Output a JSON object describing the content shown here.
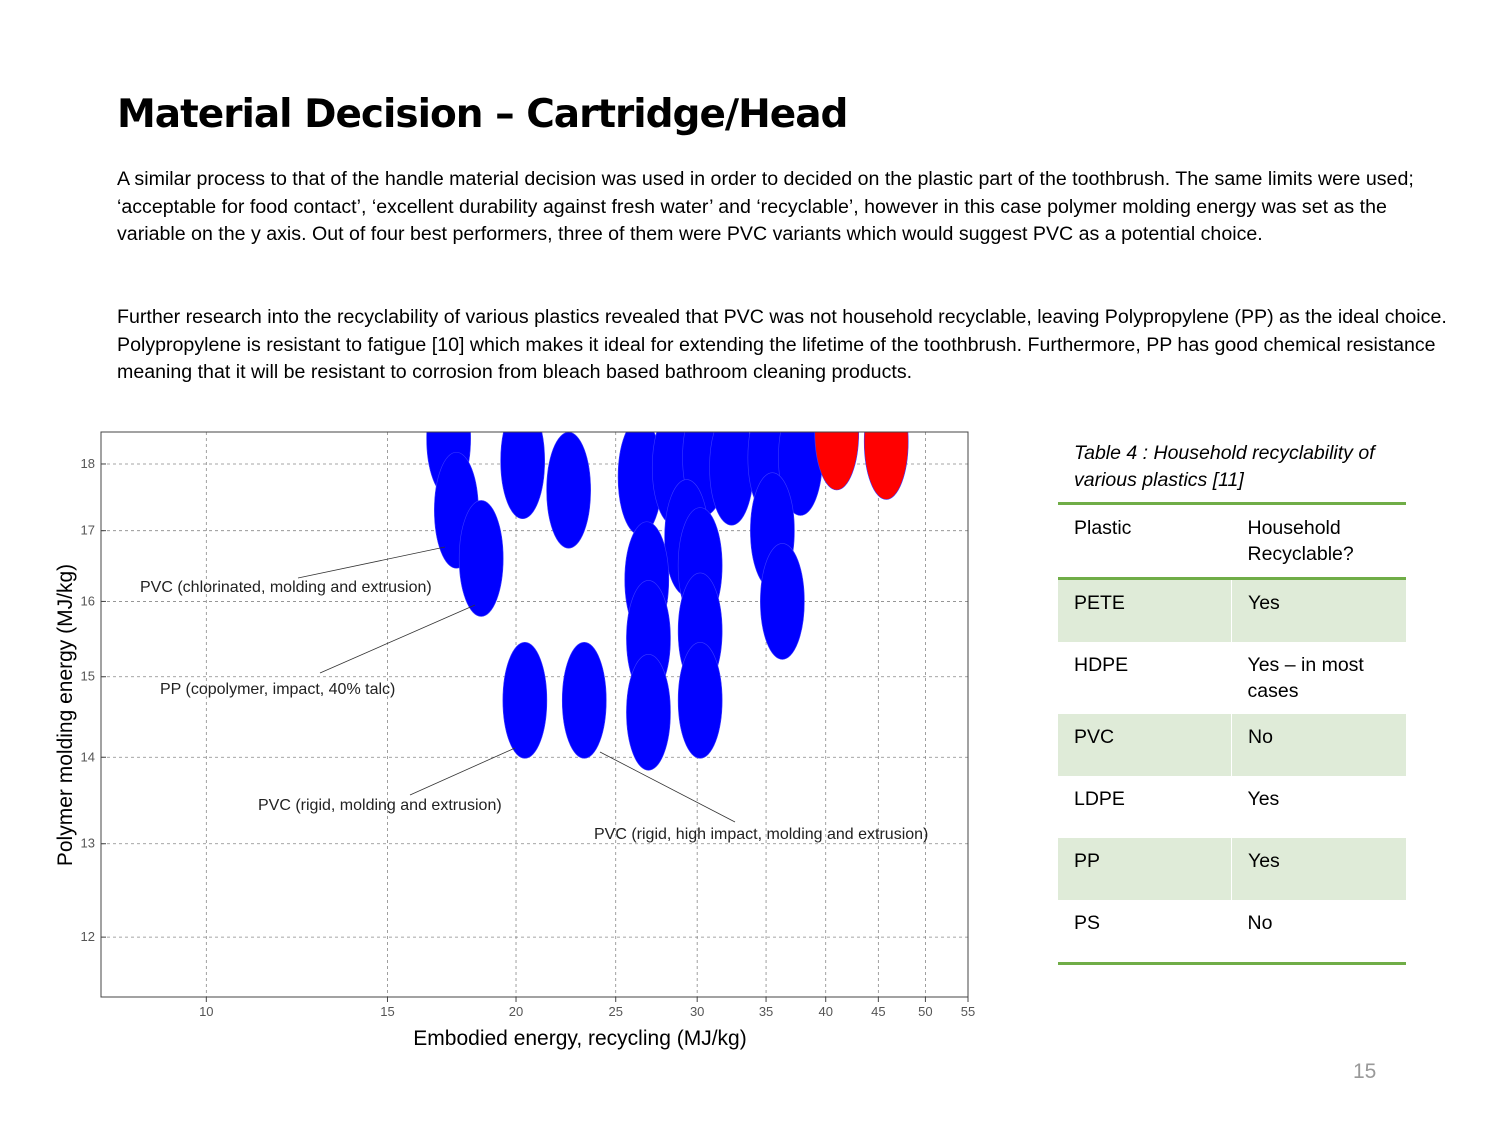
{
  "header": {
    "title": "Material Decision – Cartridge/Head"
  },
  "paragraphs": [
    "A similar process to that of the handle material decision was used in order to decided on the plastic part of the toothbrush. The same limits were used; ‘acceptable for food contact’, ‘excellent durability against fresh water’ and ‘recyclable’, however in this case polymer molding energy was set as the variable on the y axis. Out of four best performers, three of them were PVC variants which would suggest PVC as a potential choice.",
    "Further research into the recyclability of various plastics revealed that PVC was not household recyclable, leaving Polypropylene (PP) as the ideal choice. Polypropylene is resistant to fatigue [10] which makes it ideal for extending the lifetime of the toothbrush. Furthermore, PP has good chemical resistance meaning that it will be resistant to corrosion from bleach based bathroom cleaning products."
  ],
  "chart_data": {
    "type": "scatter",
    "x_label": "Embodied energy, recycling (MJ/kg)",
    "y_label": "Polymer molding energy (MJ/kg)",
    "xscale": "log",
    "yscale": "log",
    "grid": true,
    "xlim": [
      7.9,
      55
    ],
    "ylim": [
      11.4,
      18.5
    ],
    "xticks": [
      10,
      15,
      20,
      25,
      30,
      35,
      40,
      45,
      50,
      55
    ],
    "yticks": [
      12,
      13,
      14,
      15,
      16,
      17,
      18
    ],
    "series": [
      {
        "color": "#0000ff",
        "x": [
          17.2,
          17.5,
          18.5,
          20.3,
          22.5,
          26.4,
          28.5,
          30.5,
          32.4,
          35.3,
          37.8,
          29.3,
          35.5,
          26.8,
          30.2,
          36.3,
          26.9,
          30.2,
          20.4,
          23.3,
          26.9,
          30.2
        ],
        "values": [
          18.4,
          17.3,
          16.6,
          18.05,
          17.6,
          17.8,
          17.95,
          18.1,
          17.95,
          18.1,
          18.1,
          16.9,
          17.0,
          16.3,
          16.5,
          16.0,
          15.5,
          15.6,
          14.7,
          14.7,
          14.55,
          14.7
        ]
      },
      {
        "color": "#ff0000",
        "x": [
          41,
          45.8
        ],
        "values": [
          18.5,
          18.35
        ]
      }
    ],
    "annotations": [
      "PVC (chlorinated, molding and extrusion)",
      "PP (copolymer, impact, 40% talc)",
      "PVC (rigid, molding and extrusion)",
      "PVC (rigid, high impact, molding and extrusion)"
    ]
  },
  "table": {
    "caption": "Table 4 : Household recyclability of various plastics [11]",
    "header": [
      "Plastic",
      "Household Recyclable?"
    ],
    "rows": [
      [
        "PETE",
        "Yes"
      ],
      [
        "HDPE",
        "Yes – in most cases"
      ],
      [
        "PVC",
        "No"
      ],
      [
        "LDPE",
        "Yes"
      ],
      [
        "PP",
        "Yes"
      ],
      [
        "PS",
        "No"
      ]
    ]
  },
  "page_number": "15"
}
